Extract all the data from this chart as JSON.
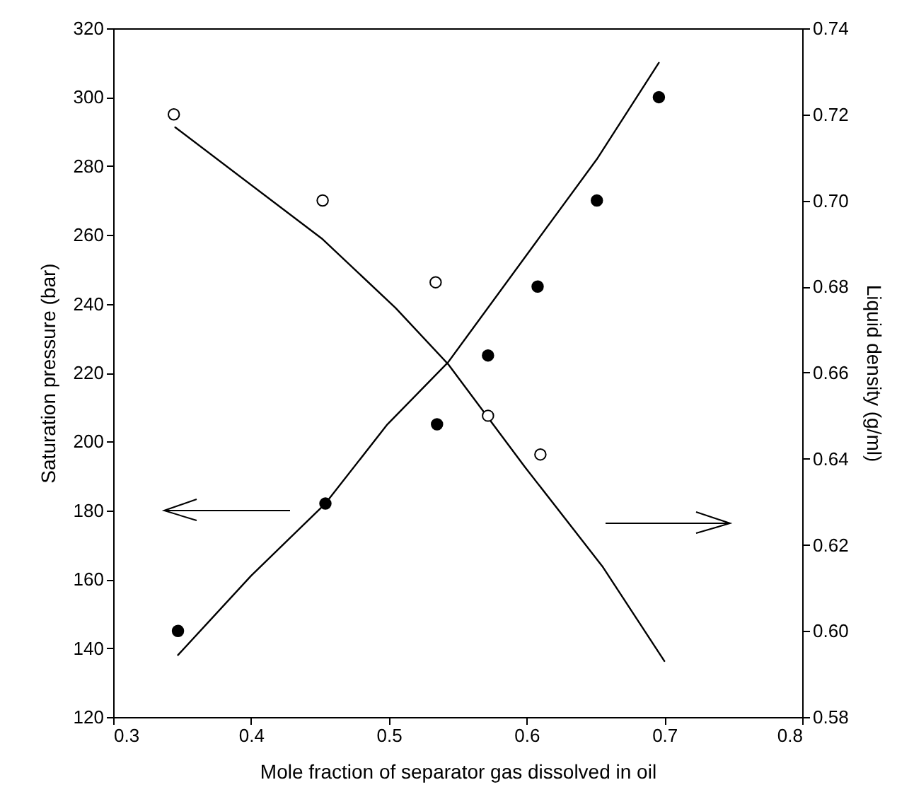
{
  "chart_data": {
    "type": "scatter",
    "xlabel": "Mole fraction of separator gas dissolved in oil",
    "ylabel": "Saturation pressure (bar)",
    "y2label": "Liquid density (g/ml)",
    "xlim": [
      0.3,
      0.8
    ],
    "xticks": [
      0.3,
      0.4,
      0.5,
      0.6,
      0.7,
      0.8
    ],
    "ylim": [
      120,
      320
    ],
    "yticks": [
      120,
      140,
      160,
      180,
      200,
      220,
      240,
      260,
      280,
      300,
      320
    ],
    "y2lim": [
      0.58,
      0.74
    ],
    "y2ticks": [
      0.58,
      {
        "value": 0.6,
        "label": "0.60"
      },
      0.62,
      0.64,
      0.66,
      0.68,
      {
        "value": 0.7,
        "label": "0.70"
      },
      0.72,
      0.74
    ],
    "grid": false,
    "marker": "circle",
    "series": [
      {
        "type": "line",
        "color": "#000000",
        "axis": "y",
        "line_style": "solid",
        "marker": "none",
        "x": [
          0.347,
          0.4,
          0.454,
          0.499,
          0.543,
          0.607,
          0.651,
          0.696
        ],
        "values": [
          138,
          161,
          182,
          205,
          223,
          258,
          282,
          310
        ]
      },
      {
        "color": "#000000",
        "axis": "y",
        "x": [
          0.347,
          0.454,
          0.535,
          0.572,
          0.608,
          0.651,
          0.696
        ],
        "values": [
          145,
          182,
          205,
          225,
          245,
          270,
          300
        ]
      },
      {
        "type": "line",
        "color": "#000000",
        "axis": "y2",
        "line_style": "solid",
        "marker": "none",
        "x": [
          0.345,
          0.452,
          0.505,
          0.543,
          0.599,
          0.655,
          0.7
        ],
        "values": [
          0.717,
          0.691,
          0.675,
          0.662,
          0.638,
          0.615,
          0.593
        ]
      },
      {
        "color": "#000000",
        "axis": "y2",
        "x": [
          0.344,
          0.452,
          0.534,
          0.572,
          0.61
        ],
        "values": [
          0.72,
          0.7,
          0.681,
          0.65,
          0.641
        ]
      }
    ]
  }
}
